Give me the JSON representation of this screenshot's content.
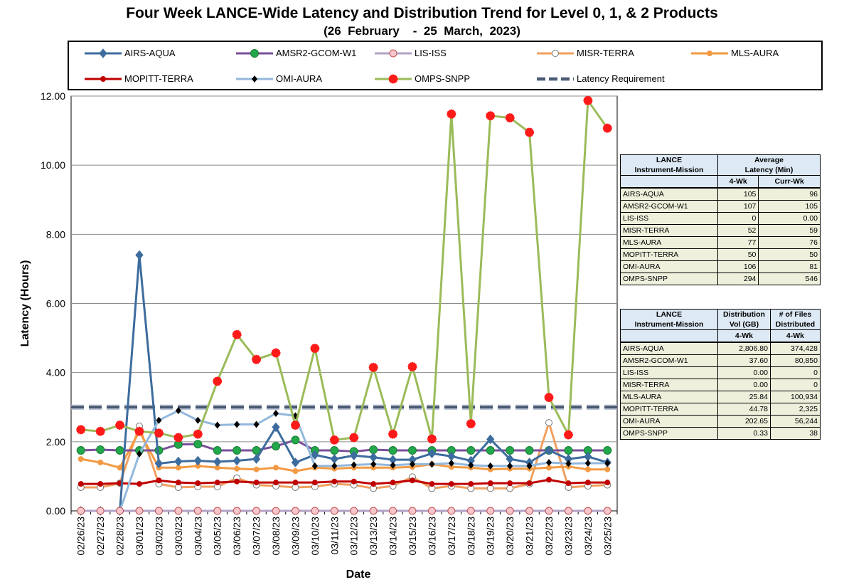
{
  "title": "Four Week LANCE-Wide Latency and Distribution Trend for Level 0, 1, & 2 Products",
  "subtitle": "(26  February    -  25  March,  2023)",
  "chart_data": {
    "type": "line",
    "title": "Four Week LANCE-Wide Latency and Distribution Trend for Level 0, 1, & 2 Products",
    "xlabel": "Date",
    "ylabel": "Latency (Hours)",
    "ylim": [
      0,
      12
    ],
    "yticks": [
      "0.00",
      "2.00",
      "4.00",
      "6.00",
      "8.00",
      "10.00",
      "12.00"
    ],
    "grid": "horizontal",
    "categories": [
      "02/26/23",
      "02/27/23",
      "02/28/23",
      "03/01/23",
      "03/02/23",
      "03/03/23",
      "03/04/23",
      "03/05/23",
      "03/06/23",
      "03/07/23",
      "03/08/23",
      "03/09/23",
      "03/10/23",
      "03/11/23",
      "03/12/23",
      "03/13/23",
      "03/14/23",
      "03/15/23",
      "03/16/23",
      "03/17/23",
      "03/18/23",
      "03/19/23",
      "03/20/23",
      "03/21/23",
      "03/22/23",
      "03/23/23",
      "03/24/23",
      "03/25/23"
    ],
    "series": [
      {
        "name": "AIRS-AQUA",
        "color": "#3d6c9e",
        "marker": "diamond",
        "values": [
          0,
          0,
          0,
          7.4,
          1.37,
          1.43,
          1.45,
          1.42,
          1.45,
          1.5,
          2.42,
          1.4,
          1.62,
          1.5,
          1.6,
          1.55,
          1.48,
          1.48,
          1.66,
          1.58,
          1.45,
          2.07,
          1.5,
          1.4,
          1.75,
          1.5,
          1.57,
          1.4
        ]
      },
      {
        "name": "AMSR2-GCOM-W1",
        "color": "#7a4f9a",
        "marker": "circle-filled",
        "values": [
          1.75,
          1.77,
          1.75,
          1.75,
          1.75,
          1.92,
          1.93,
          1.75,
          1.75,
          1.75,
          1.87,
          2.05,
          1.75,
          1.75,
          1.72,
          1.77,
          1.75,
          1.75,
          1.75,
          1.75,
          1.75,
          1.75,
          1.75,
          1.75,
          1.75,
          1.75,
          1.75,
          1.75
        ]
      },
      {
        "name": "LIS-ISS",
        "color": "#b3a2c7",
        "marker": "circle-pink",
        "values": [
          0,
          0,
          0,
          0,
          0,
          0,
          0,
          0,
          0,
          0,
          0,
          0,
          0,
          0,
          0,
          0,
          0,
          0,
          0,
          0,
          0,
          0,
          0,
          0,
          0,
          0,
          0,
          0
        ]
      },
      {
        "name": "MISR-TERRA",
        "color": "#f0a060",
        "marker": "circle-open",
        "values": [
          0.68,
          0.68,
          0.8,
          2.45,
          0.78,
          0.68,
          0.7,
          0.7,
          0.95,
          0.75,
          0.72,
          0.68,
          0.7,
          0.78,
          0.75,
          0.65,
          0.72,
          0.98,
          0.65,
          0.72,
          0.65,
          0.65,
          0.65,
          0.78,
          2.55,
          0.68,
          0.72,
          0.75
        ]
      },
      {
        "name": "MLS-AURA",
        "color": "#f39a44",
        "marker": "circle-filled-orange",
        "values": [
          1.5,
          1.4,
          1.25,
          2.3,
          1.25,
          1.25,
          1.3,
          1.25,
          1.22,
          1.2,
          1.25,
          1.15,
          1.25,
          1.22,
          1.25,
          1.25,
          1.25,
          1.27,
          1.35,
          1.27,
          1.25,
          1.2,
          1.22,
          1.22,
          1.25,
          1.28,
          1.2,
          1.2
        ]
      },
      {
        "name": "MOPITT-TERRA",
        "color": "#c00000",
        "marker": "circle-filled-red",
        "values": [
          0.78,
          0.78,
          0.8,
          0.78,
          0.88,
          0.82,
          0.8,
          0.82,
          0.85,
          0.82,
          0.82,
          0.82,
          0.82,
          0.85,
          0.85,
          0.78,
          0.82,
          0.88,
          0.78,
          0.78,
          0.78,
          0.8,
          0.8,
          0.8,
          0.9,
          0.8,
          0.82,
          0.82
        ]
      },
      {
        "name": "OMI-AURA",
        "color": "#93b8dd",
        "marker": "diamond-black",
        "values": [
          0,
          0,
          0,
          1.65,
          2.62,
          2.9,
          2.62,
          2.48,
          2.5,
          2.5,
          2.82,
          2.75,
          1.3,
          1.3,
          1.33,
          1.35,
          1.32,
          1.35,
          1.35,
          1.38,
          1.32,
          1.3,
          1.3,
          1.3,
          1.4,
          1.37,
          1.38,
          1.38
        ]
      },
      {
        "name": "OMPS-SNPP",
        "color": "#9bbb59",
        "marker": "star-red",
        "values": [
          2.35,
          2.3,
          2.48,
          2.3,
          2.25,
          2.12,
          2.22,
          3.75,
          5.1,
          4.38,
          4.57,
          2.48,
          4.7,
          2.05,
          2.12,
          4.15,
          2.22,
          4.17,
          2.08,
          11.48,
          2.52,
          11.43,
          11.37,
          10.95,
          3.28,
          2.2,
          11.87,
          11.07
        ]
      },
      {
        "name": "Latency Requirement",
        "color": "#44546a",
        "marker": "dashed",
        "values": [
          3,
          3,
          3,
          3,
          3,
          3,
          3,
          3,
          3,
          3,
          3,
          3,
          3,
          3,
          3,
          3,
          3,
          3,
          3,
          3,
          3,
          3,
          3,
          3,
          3,
          3,
          3,
          3
        ]
      }
    ]
  },
  "latency_table": {
    "header1": "LANCE",
    "header2": "Instrument-Mission",
    "group": "Average",
    "group2": "Latency (Min)",
    "col1": "4-Wk",
    "col2": "Curr-Wk",
    "rows": [
      {
        "name": "AIRS-AQUA",
        "a": "105",
        "b": "96"
      },
      {
        "name": "AMSR2-GCOM-W1",
        "a": "107",
        "b": "105"
      },
      {
        "name": "LIS-ISS",
        "a": "0",
        "b": "0.00"
      },
      {
        "name": "MISR-TERRA",
        "a": "52",
        "b": "59"
      },
      {
        "name": "MLS-AURA",
        "a": "77",
        "b": "76"
      },
      {
        "name": "MOPITT-TERRA",
        "a": "50",
        "b": "50"
      },
      {
        "name": "OMI-AURA",
        "a": "106",
        "b": "81"
      },
      {
        "name": "OMPS-SNPP",
        "a": "294",
        "b": "546"
      }
    ]
  },
  "distribution_table": {
    "header1": "LANCE",
    "header2": "Instrument-Mission",
    "col1a": "Distribution",
    "col1b": "Vol (GB)",
    "col2a": "# of Files",
    "col2b": "Distributed",
    "col1": "4-Wk",
    "col2": "4-Wk",
    "rows": [
      {
        "name": "AIRS-AQUA",
        "a": "2,806.80",
        "b": "374,428"
      },
      {
        "name": "AMSR2-GCOM-W1",
        "a": "37.60",
        "b": "80,850"
      },
      {
        "name": "LIS-ISS",
        "a": "0.00",
        "b": "0"
      },
      {
        "name": "MISR-TERRA",
        "a": "0.00",
        "b": "0"
      },
      {
        "name": "MLS-AURA",
        "a": "25.84",
        "b": "100,934"
      },
      {
        "name": "MOPITT-TERRA",
        "a": "44.78",
        "b": "2,325"
      },
      {
        "name": "OMI-AURA",
        "a": "202.65",
        "b": "56,244"
      },
      {
        "name": "OMPS-SNPP",
        "a": "0.33",
        "b": "38"
      }
    ]
  }
}
